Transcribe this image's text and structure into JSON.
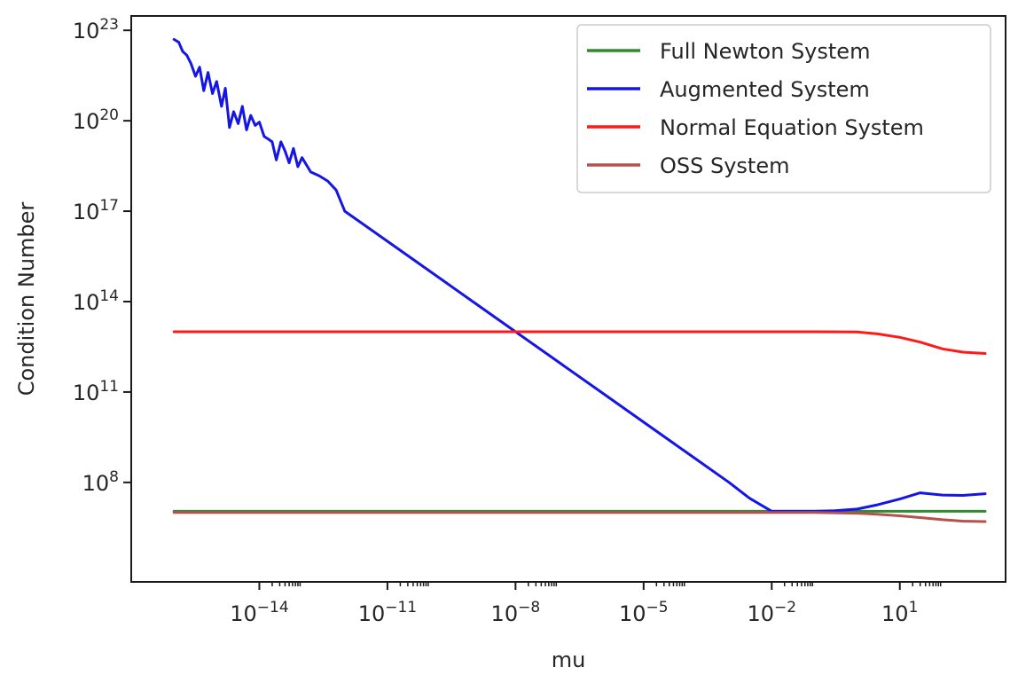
{
  "chart_data": {
    "type": "line",
    "title": "",
    "xlabel": "mu",
    "ylabel": "Condition Number",
    "xscale": "log",
    "yscale": "log",
    "xlim": [
      1e-17,
      3000.0
    ],
    "ylim": [
      50000.0,
      3e+23
    ],
    "grid": false,
    "legend_position": "top-right",
    "xticks": [
      {
        "value": 1e-14,
        "base": "10",
        "exp": "−14"
      },
      {
        "value": 1e-11,
        "base": "10",
        "exp": "−11"
      },
      {
        "value": 1e-08,
        "base": "10",
        "exp": "−8"
      },
      {
        "value": 1e-05,
        "base": "10",
        "exp": "−5"
      },
      {
        "value": 0.01,
        "base": "10",
        "exp": "−2"
      },
      {
        "value": 10.0,
        "base": "10",
        "exp": "1"
      }
    ],
    "yticks": [
      {
        "value": 100000000.0,
        "base": "10",
        "exp": "8"
      },
      {
        "value": 100000000000.0,
        "base": "10",
        "exp": "11"
      },
      {
        "value": 100000000000000.0,
        "base": "10",
        "exp": "14"
      },
      {
        "value": 1e+17,
        "base": "10",
        "exp": "17"
      },
      {
        "value": 1e+20,
        "base": "10",
        "exp": "20"
      },
      {
        "value": 1e+23,
        "base": "10",
        "exp": "23"
      }
    ],
    "series": [
      {
        "name": "Full Newton System",
        "color": "#2e8b2e",
        "x": [
          1e-16,
          1e-12,
          1e-08,
          0.0001,
          0.01,
          1,
          10,
          100,
          1000
        ],
        "y": [
          11000000.0,
          11000000.0,
          11000000.0,
          11000000.0,
          11000000.0,
          11000000.0,
          11000000.0,
          11000000.0,
          11000000.0
        ]
      },
      {
        "name": "Augmented System",
        "color": "#1515e6",
        "x": [
          1e-16,
          1.3e-16,
          1.6e-16,
          2e-16,
          2.5e-16,
          3.2e-16,
          4e-16,
          5e-16,
          6.3e-16,
          8e-16,
          1e-15,
          1.3e-15,
          1.6e-15,
          2e-15,
          2.5e-15,
          3.2e-15,
          4e-15,
          5e-15,
          6.3e-15,
          8e-15,
          1e-14,
          1.3e-14,
          1.6e-14,
          2e-14,
          2.5e-14,
          3.2e-14,
          4e-14,
          5e-14,
          6.3e-14,
          8e-14,
          1e-13,
          1.6e-13,
          2.5e-13,
          4e-13,
          6.3e-13,
          1e-12,
          1e-11,
          1e-10,
          1e-09,
          1e-08,
          1e-07,
          1e-06,
          1e-05,
          0.0001,
          0.001,
          0.003,
          0.01,
          0.03,
          0.1,
          0.3,
          1,
          3,
          10,
          30,
          100,
          300,
          1000
        ],
        "y": [
          5e+22,
          4e+22,
          2e+22,
          1.5e+22,
          8e+21,
          3e+21,
          6e+21,
          1e+21,
          4e+21,
          8e+20,
          2e+21,
          3e+20,
          1.2e+21,
          6e+19,
          2e+20,
          8e+19,
          3e+20,
          5e+19,
          1.5e+20,
          7e+19,
          9e+19,
          3e+19,
          2.5e+19,
          2e+19,
          5e+18,
          2e+19,
          1e+19,
          4e+18,
          1.2e+19,
          3e+18,
          6e+18,
          2e+18,
          1.5e+18,
          1e+18,
          5e+17,
          1e+17,
          1e+16,
          1000000000000000.0,
          100000000000000.0,
          10000000000000.0,
          1000000000000.0,
          100000000000.0,
          10000000000.0,
          1000000000.0,
          100000000.0,
          30000000.0,
          11000000.0,
          11000000.0,
          11000000.0,
          11500000.0,
          13000000.0,
          18000000.0,
          28000000.0,
          45000000.0,
          38000000.0,
          37000000.0,
          42000000.0
        ]
      },
      {
        "name": "Normal Equation System",
        "color": "#ff1a1a",
        "x": [
          1e-16,
          1e-12,
          1e-08,
          0.0001,
          0.01,
          0.1,
          1,
          3,
          10,
          30,
          100,
          300,
          1000
        ],
        "y": [
          10000000000000.0,
          10000000000000.0,
          10000000000000.0,
          10000000000000.0,
          10000000000000.0,
          10000000000000.0,
          9800000000000.0,
          8500000000000.0,
          6500000000000.0,
          4500000000000.0,
          2700000000000.0,
          2100000000000.0,
          1900000000000.0
        ]
      },
      {
        "name": "OSS System",
        "color": "#b5524e",
        "x": [
          1e-16,
          1e-12,
          1e-08,
          0.0001,
          0.01,
          0.1,
          1,
          3,
          10,
          30,
          100,
          300,
          1000
        ],
        "y": [
          10000000.0,
          10000000.0,
          10000000.0,
          10000000.0,
          10000000.0,
          10000000.0,
          9500000.0,
          8800000.0,
          7800000.0,
          6800000.0,
          5800000.0,
          5200000.0,
          5000000.0
        ]
      }
    ]
  }
}
